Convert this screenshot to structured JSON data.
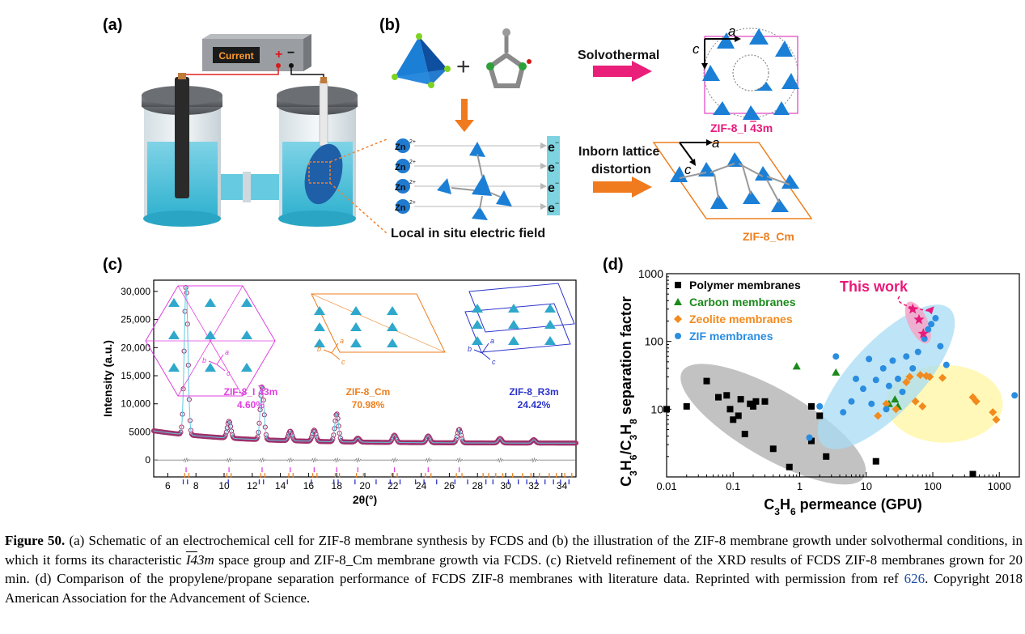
{
  "panels": {
    "a": {
      "label": "(a)",
      "power_supply_label": "Current",
      "plus_sign": "+",
      "minus_sign": "−"
    },
    "b": {
      "label": "(b)",
      "solvothermal_label": "Solvothermal",
      "distortion_label_line1": "Inborn lattice",
      "distortion_label_line2": "distortion",
      "electric_field_label": "Local in situ electric field",
      "zn_ion": "Zn",
      "zn_charge": "2+",
      "electron": "e",
      "electron_charge": "−",
      "axis_a": "a",
      "axis_c": "c",
      "product_top_prefix": "ZIF-8_I",
      "product_top_bar": "4",
      "product_top_suffix": "3m",
      "product_bottom": "ZIF-8_Cm",
      "plus": "+"
    },
    "c": {
      "label": "(c)",
      "inset_labels": [
        {
          "line1_prefix": "ZIF-8_I",
          "line1_bar": "4",
          "line1_suffix": "3m",
          "line2": "4.60%",
          "color": "#e040e0"
        },
        {
          "line1_prefix": "ZIF-8_Cm",
          "line1_bar": "",
          "line1_suffix": "",
          "line2": "70.98%",
          "color": "#ee7f1f"
        },
        {
          "line1_prefix": "ZIF-8_R3m",
          "line1_bar": "",
          "line1_suffix": "",
          "line2": "24.42%",
          "color": "#2b33c9"
        }
      ],
      "inset_axes": [
        "a",
        "b",
        "c"
      ]
    },
    "d": {
      "label": "(d)",
      "this_work_label": "This work"
    }
  },
  "chart_data": [
    {
      "type": "line",
      "panel": "c",
      "xlabel": "2θ(°)",
      "ylabel": "Intensity (a.u.)",
      "xlim": [
        5,
        35
      ],
      "ylim": [
        -3000,
        32000
      ],
      "x_ticks": [
        6,
        8,
        10,
        12,
        14,
        16,
        18,
        20,
        22,
        24,
        26,
        28,
        30,
        32,
        34
      ],
      "y_ticks": [
        0,
        5000,
        10000,
        15000,
        20000,
        25000,
        30000
      ],
      "y_tick_labels": [
        "0",
        "5000",
        "10,000",
        "15,000",
        "20,000",
        "25,000",
        "30,000"
      ],
      "baseline": 3000,
      "peaks": [
        {
          "x": 7.3,
          "y": 29500
        },
        {
          "x": 10.35,
          "y": 6000
        },
        {
          "x": 12.7,
          "y": 12500
        },
        {
          "x": 14.7,
          "y": 4700
        },
        {
          "x": 16.4,
          "y": 5000
        },
        {
          "x": 18.0,
          "y": 8000
        },
        {
          "x": 19.5,
          "y": 3700
        },
        {
          "x": 22.1,
          "y": 4300
        },
        {
          "x": 24.5,
          "y": 4200
        },
        {
          "x": 26.7,
          "y": 5400
        },
        {
          "x": 29.6,
          "y": 3800
        },
        {
          "x": 32.0,
          "y": 3600
        }
      ],
      "marker_colors": {
        "I43m": "#e040e0",
        "Cm": "#ee7f1f",
        "R3m": "#2b33c9"
      },
      "tick_marks": {
        "I43m": [
          7.3,
          10.35,
          12.7,
          14.7,
          16.4,
          18.0,
          19.5,
          22.1,
          24.5,
          26.7
        ],
        "Cm": [
          7.2,
          7.5,
          10.2,
          10.5,
          12.6,
          12.9,
          14.6,
          14.9,
          16.3,
          16.6,
          17.9,
          18.2,
          19.4,
          19.9,
          21.9,
          22.3,
          24.3,
          24.7,
          26.5,
          26.9,
          28.4,
          28.8,
          29.3,
          29.8,
          30.5,
          31.2,
          31.8,
          32.4,
          33.1,
          33.6,
          34.2,
          34.7
        ],
        "R3m": [
          7.1,
          7.4,
          10.3,
          12.5,
          12.8,
          14.5,
          16.2,
          17.8,
          18.1,
          19.3,
          20.8,
          21.8,
          22.5,
          23.6,
          24.2,
          25.1,
          26.4,
          27.3,
          28.6,
          29.1,
          30.2,
          30.9,
          31.5,
          32.2,
          32.8,
          33.4,
          33.9,
          34.5
        ]
      }
    },
    {
      "type": "scatter",
      "panel": "d",
      "xlabel": "C3H6 permeance (GPU)",
      "ylabel": "C3H6/C3H8 separation factor",
      "x_scale": "log",
      "y_scale": "log",
      "xlim": [
        0.01,
        2000
      ],
      "ylim": [
        1,
        1000
      ],
      "x_ticks": [
        0.01,
        0.1,
        1,
        10,
        100,
        1000
      ],
      "x_tick_labels": [
        "0.01",
        "0.1",
        "1",
        "10",
        "100",
        "1000"
      ],
      "y_ticks": [
        10,
        100,
        1000
      ],
      "y_tick_labels": [
        "10",
        "100",
        "1000"
      ],
      "legend_position": "top-left",
      "series": [
        {
          "name": "Polymer membranes",
          "marker": "square",
          "color": "#000000",
          "points": [
            [
              0.01,
              10
            ],
            [
              0.02,
              11
            ],
            [
              0.04,
              26
            ],
            [
              0.06,
              15
            ],
            [
              0.08,
              16
            ],
            [
              0.09,
              10
            ],
            [
              0.1,
              7
            ],
            [
              0.12,
              8
            ],
            [
              0.13,
              14
            ],
            [
              0.15,
              4.3
            ],
            [
              0.18,
              12
            ],
            [
              0.2,
              11
            ],
            [
              0.22,
              13
            ],
            [
              0.3,
              13
            ],
            [
              0.4,
              2.6
            ],
            [
              0.7,
              1.4
            ],
            [
              1.5,
              3.4
            ],
            [
              2,
              8
            ],
            [
              2.5,
              2
            ],
            [
              1.5,
              11
            ],
            [
              14,
              1.7
            ],
            [
              400,
              1.1
            ]
          ]
        },
        {
          "name": "Carbon membranes",
          "marker": "triangle",
          "color": "#1a8a1a",
          "points": [
            [
              0.9,
              43
            ],
            [
              3.5,
              35
            ],
            [
              27,
              14
            ],
            [
              30,
              11
            ],
            [
              22,
              12
            ]
          ]
        },
        {
          "name": "Zeolite membranes",
          "marker": "diamond",
          "color": "#f28a1d",
          "points": [
            [
              15,
              8
            ],
            [
              20,
              12
            ],
            [
              28,
              10
            ],
            [
              40,
              25
            ],
            [
              45,
              30
            ],
            [
              55,
              13
            ],
            [
              65,
              32
            ],
            [
              70,
              11
            ],
            [
              80,
              31
            ],
            [
              90,
              30
            ],
            [
              140,
              29
            ],
            [
              400,
              15
            ],
            [
              450,
              13
            ],
            [
              800,
              9
            ],
            [
              900,
              7
            ]
          ]
        },
        {
          "name": "ZIF membranes",
          "marker": "circle",
          "color": "#2a8de0",
          "points": [
            [
              1.4,
              3.8
            ],
            [
              2,
              11
            ],
            [
              3.5,
              60
            ],
            [
              4.5,
              9
            ],
            [
              6,
              13
            ],
            [
              7,
              28
            ],
            [
              9,
              20
            ],
            [
              11,
              55
            ],
            [
              12,
              12
            ],
            [
              14,
              27
            ],
            [
              18,
              40
            ],
            [
              20,
              10
            ],
            [
              22,
              22
            ],
            [
              25,
              52
            ],
            [
              30,
              28
            ],
            [
              35,
              18
            ],
            [
              40,
              60
            ],
            [
              50,
              40
            ],
            [
              60,
              70
            ],
            [
              75,
              110
            ],
            [
              85,
              150
            ],
            [
              95,
              180
            ],
            [
              110,
              220
            ],
            [
              130,
              85
            ],
            [
              160,
              45
            ],
            [
              1700,
              16
            ]
          ]
        },
        {
          "name": "This work",
          "marker": "star",
          "color": "#e8197a",
          "points": [
            [
              50,
              300
            ],
            [
              62,
              210
            ],
            [
              72,
              130
            ]
          ]
        }
      ]
    }
  ],
  "caption": {
    "figure_label": "Figure 50.",
    "text_1": "(a) Schematic of an electrochemical cell for ZIF-8 membrane synthesis by FCDS and (b) the illustration of the ZIF-8 membrane growth under solvothermal conditions, in which it forms its characteristic ",
    "space_group_bar": "I4",
    "space_group_rest": "3m",
    "text_2": " space group and ZIF-8_Cm membrane growth via FCDS. (c) Rietveld refinement of the XRD results of FCDS ZIF-8 membranes grown for 20 min. (d) Comparison of the propylene/propane separation performance of FCDS ZIF-8 membranes with literature data. Reprinted with permission from ref ",
    "ref_number": "626",
    "text_3": ". Copyright 2018 American Association for the Advancement of Science."
  }
}
